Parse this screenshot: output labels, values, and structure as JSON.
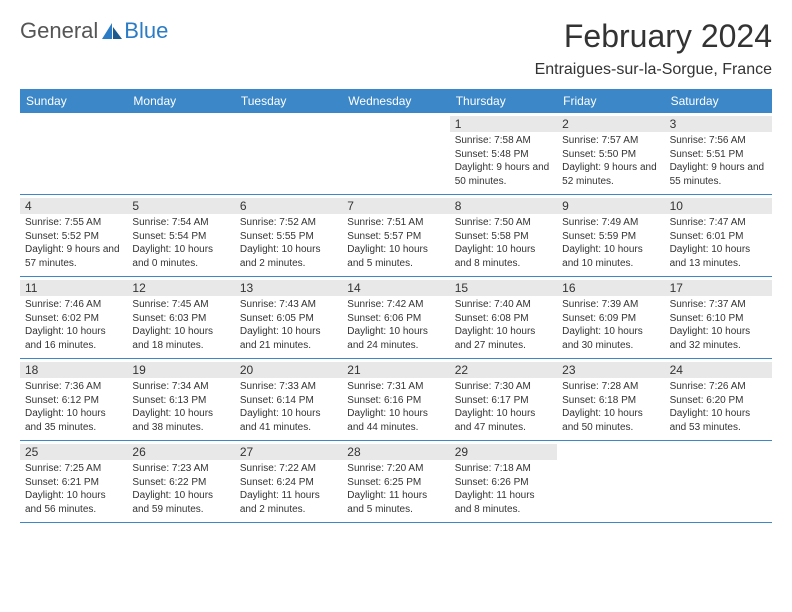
{
  "brand": {
    "name_part1": "General",
    "name_part2": "Blue",
    "logo_color": "#2b7cc4"
  },
  "title": "February 2024",
  "location": "Entraigues-sur-la-Sorgue, France",
  "colors": {
    "header_bg": "#3b87c8",
    "header_text": "#ffffff",
    "daynum_bg": "#e8e8e8",
    "border": "#3b87c8",
    "text": "#333333"
  },
  "day_headers": [
    "Sunday",
    "Monday",
    "Tuesday",
    "Wednesday",
    "Thursday",
    "Friday",
    "Saturday"
  ],
  "weeks": [
    [
      null,
      null,
      null,
      null,
      {
        "n": "1",
        "sr": "Sunrise: 7:58 AM",
        "ss": "Sunset: 5:48 PM",
        "dl": "Daylight: 9 hours and 50 minutes."
      },
      {
        "n": "2",
        "sr": "Sunrise: 7:57 AM",
        "ss": "Sunset: 5:50 PM",
        "dl": "Daylight: 9 hours and 52 minutes."
      },
      {
        "n": "3",
        "sr": "Sunrise: 7:56 AM",
        "ss": "Sunset: 5:51 PM",
        "dl": "Daylight: 9 hours and 55 minutes."
      }
    ],
    [
      {
        "n": "4",
        "sr": "Sunrise: 7:55 AM",
        "ss": "Sunset: 5:52 PM",
        "dl": "Daylight: 9 hours and 57 minutes."
      },
      {
        "n": "5",
        "sr": "Sunrise: 7:54 AM",
        "ss": "Sunset: 5:54 PM",
        "dl": "Daylight: 10 hours and 0 minutes."
      },
      {
        "n": "6",
        "sr": "Sunrise: 7:52 AM",
        "ss": "Sunset: 5:55 PM",
        "dl": "Daylight: 10 hours and 2 minutes."
      },
      {
        "n": "7",
        "sr": "Sunrise: 7:51 AM",
        "ss": "Sunset: 5:57 PM",
        "dl": "Daylight: 10 hours and 5 minutes."
      },
      {
        "n": "8",
        "sr": "Sunrise: 7:50 AM",
        "ss": "Sunset: 5:58 PM",
        "dl": "Daylight: 10 hours and 8 minutes."
      },
      {
        "n": "9",
        "sr": "Sunrise: 7:49 AM",
        "ss": "Sunset: 5:59 PM",
        "dl": "Daylight: 10 hours and 10 minutes."
      },
      {
        "n": "10",
        "sr": "Sunrise: 7:47 AM",
        "ss": "Sunset: 6:01 PM",
        "dl": "Daylight: 10 hours and 13 minutes."
      }
    ],
    [
      {
        "n": "11",
        "sr": "Sunrise: 7:46 AM",
        "ss": "Sunset: 6:02 PM",
        "dl": "Daylight: 10 hours and 16 minutes."
      },
      {
        "n": "12",
        "sr": "Sunrise: 7:45 AM",
        "ss": "Sunset: 6:03 PM",
        "dl": "Daylight: 10 hours and 18 minutes."
      },
      {
        "n": "13",
        "sr": "Sunrise: 7:43 AM",
        "ss": "Sunset: 6:05 PM",
        "dl": "Daylight: 10 hours and 21 minutes."
      },
      {
        "n": "14",
        "sr": "Sunrise: 7:42 AM",
        "ss": "Sunset: 6:06 PM",
        "dl": "Daylight: 10 hours and 24 minutes."
      },
      {
        "n": "15",
        "sr": "Sunrise: 7:40 AM",
        "ss": "Sunset: 6:08 PM",
        "dl": "Daylight: 10 hours and 27 minutes."
      },
      {
        "n": "16",
        "sr": "Sunrise: 7:39 AM",
        "ss": "Sunset: 6:09 PM",
        "dl": "Daylight: 10 hours and 30 minutes."
      },
      {
        "n": "17",
        "sr": "Sunrise: 7:37 AM",
        "ss": "Sunset: 6:10 PM",
        "dl": "Daylight: 10 hours and 32 minutes."
      }
    ],
    [
      {
        "n": "18",
        "sr": "Sunrise: 7:36 AM",
        "ss": "Sunset: 6:12 PM",
        "dl": "Daylight: 10 hours and 35 minutes."
      },
      {
        "n": "19",
        "sr": "Sunrise: 7:34 AM",
        "ss": "Sunset: 6:13 PM",
        "dl": "Daylight: 10 hours and 38 minutes."
      },
      {
        "n": "20",
        "sr": "Sunrise: 7:33 AM",
        "ss": "Sunset: 6:14 PM",
        "dl": "Daylight: 10 hours and 41 minutes."
      },
      {
        "n": "21",
        "sr": "Sunrise: 7:31 AM",
        "ss": "Sunset: 6:16 PM",
        "dl": "Daylight: 10 hours and 44 minutes."
      },
      {
        "n": "22",
        "sr": "Sunrise: 7:30 AM",
        "ss": "Sunset: 6:17 PM",
        "dl": "Daylight: 10 hours and 47 minutes."
      },
      {
        "n": "23",
        "sr": "Sunrise: 7:28 AM",
        "ss": "Sunset: 6:18 PM",
        "dl": "Daylight: 10 hours and 50 minutes."
      },
      {
        "n": "24",
        "sr": "Sunrise: 7:26 AM",
        "ss": "Sunset: 6:20 PM",
        "dl": "Daylight: 10 hours and 53 minutes."
      }
    ],
    [
      {
        "n": "25",
        "sr": "Sunrise: 7:25 AM",
        "ss": "Sunset: 6:21 PM",
        "dl": "Daylight: 10 hours and 56 minutes."
      },
      {
        "n": "26",
        "sr": "Sunrise: 7:23 AM",
        "ss": "Sunset: 6:22 PM",
        "dl": "Daylight: 10 hours and 59 minutes."
      },
      {
        "n": "27",
        "sr": "Sunrise: 7:22 AM",
        "ss": "Sunset: 6:24 PM",
        "dl": "Daylight: 11 hours and 2 minutes."
      },
      {
        "n": "28",
        "sr": "Sunrise: 7:20 AM",
        "ss": "Sunset: 6:25 PM",
        "dl": "Daylight: 11 hours and 5 minutes."
      },
      {
        "n": "29",
        "sr": "Sunrise: 7:18 AM",
        "ss": "Sunset: 6:26 PM",
        "dl": "Daylight: 11 hours and 8 minutes."
      },
      null,
      null
    ]
  ]
}
